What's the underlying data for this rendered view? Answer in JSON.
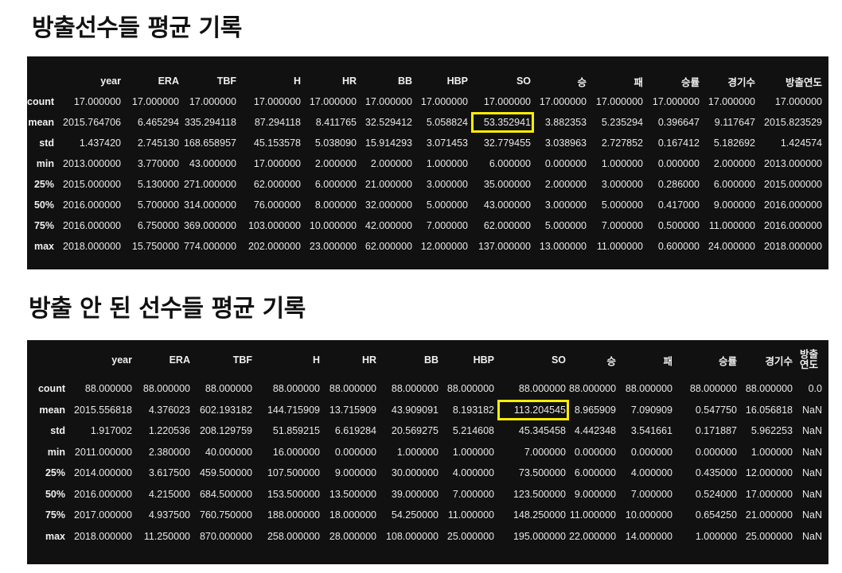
{
  "section1": {
    "title": "방출선수들 평균 기록",
    "columns": [
      "",
      "year",
      "ERA",
      "TBF",
      "H",
      "HR",
      "BB",
      "HBP",
      "SO",
      "승",
      "패",
      "승률",
      "경기수",
      "방출연도"
    ],
    "rows": [
      {
        "label": "count",
        "values": [
          "17.000000",
          "17.000000",
          "17.000000",
          "17.000000",
          "17.000000",
          "17.000000",
          "17.000000",
          "17.000000",
          "17.000000",
          "17.000000",
          "17.000000",
          "17.000000",
          "17.000000"
        ]
      },
      {
        "label": "mean",
        "values": [
          "2015.764706",
          "6.465294",
          "335.294118",
          "87.294118",
          "8.411765",
          "32.529412",
          "5.058824",
          "53.352941",
          "3.882353",
          "5.235294",
          "0.396647",
          "9.117647",
          "2015.823529"
        ]
      },
      {
        "label": "std",
        "values": [
          "1.437420",
          "2.745130",
          "168.658957",
          "45.153578",
          "5.038090",
          "15.914293",
          "3.071453",
          "32.779455",
          "3.038963",
          "2.727852",
          "0.167412",
          "5.182692",
          "1.424574"
        ]
      },
      {
        "label": "min",
        "values": [
          "2013.000000",
          "3.770000",
          "43.000000",
          "17.000000",
          "2.000000",
          "2.000000",
          "1.000000",
          "6.000000",
          "0.000000",
          "1.000000",
          "0.000000",
          "2.000000",
          "2013.000000"
        ]
      },
      {
        "label": "25%",
        "values": [
          "2015.000000",
          "5.130000",
          "271.000000",
          "62.000000",
          "6.000000",
          "21.000000",
          "3.000000",
          "35.000000",
          "2.000000",
          "3.000000",
          "0.286000",
          "6.000000",
          "2015.000000"
        ]
      },
      {
        "label": "50%",
        "values": [
          "2016.000000",
          "5.700000",
          "314.000000",
          "76.000000",
          "8.000000",
          "32.000000",
          "5.000000",
          "43.000000",
          "3.000000",
          "5.000000",
          "0.417000",
          "9.000000",
          "2016.000000"
        ]
      },
      {
        "label": "75%",
        "values": [
          "2016.000000",
          "6.750000",
          "369.000000",
          "103.000000",
          "10.000000",
          "42.000000",
          "7.000000",
          "62.000000",
          "5.000000",
          "7.000000",
          "0.500000",
          "11.000000",
          "2016.000000"
        ]
      },
      {
        "label": "max",
        "values": [
          "2018.000000",
          "15.750000",
          "774.000000",
          "202.000000",
          "23.000000",
          "62.000000",
          "12.000000",
          "137.000000",
          "13.000000",
          "11.000000",
          "0.600000",
          "24.000000",
          "2018.000000"
        ]
      }
    ],
    "highlight_color": "#ffee00"
  },
  "section2": {
    "title": "방출 안 된 선수들 평균 기록",
    "columns": [
      "",
      "year",
      "ERA",
      "TBF",
      "H",
      "HR",
      "BB",
      "HBP",
      "SO",
      "승",
      "패",
      "승률",
      "경기수",
      "방출연도"
    ],
    "rows": [
      {
        "label": "count",
        "values": [
          "88.000000",
          "88.000000",
          "88.000000",
          "88.000000",
          "88.000000",
          "88.000000",
          "88.000000",
          "88.000000",
          "88.000000",
          "88.000000",
          "88.000000",
          "88.000000",
          "0.0"
        ]
      },
      {
        "label": "mean",
        "values": [
          "2015.556818",
          "4.376023",
          "602.193182",
          "144.715909",
          "13.715909",
          "43.909091",
          "8.193182",
          "113.204545",
          "8.965909",
          "7.090909",
          "0.547750",
          "16.056818",
          "NaN"
        ]
      },
      {
        "label": "std",
        "values": [
          "1.917002",
          "1.220536",
          "208.129759",
          "51.859215",
          "6.619284",
          "20.569275",
          "5.214608",
          "45.345458",
          "4.442348",
          "3.541661",
          "0.171887",
          "5.962253",
          "NaN"
        ]
      },
      {
        "label": "min",
        "values": [
          "2011.000000",
          "2.380000",
          "40.000000",
          "16.000000",
          "0.000000",
          "1.000000",
          "1.000000",
          "7.000000",
          "0.000000",
          "0.000000",
          "0.000000",
          "1.000000",
          "NaN"
        ]
      },
      {
        "label": "25%",
        "values": [
          "2014.000000",
          "3.617500",
          "459.500000",
          "107.500000",
          "9.000000",
          "30.000000",
          "4.000000",
          "73.500000",
          "6.000000",
          "4.000000",
          "0.435000",
          "12.000000",
          "NaN"
        ]
      },
      {
        "label": "50%",
        "values": [
          "2016.000000",
          "4.215000",
          "684.500000",
          "153.500000",
          "13.500000",
          "39.000000",
          "7.000000",
          "123.500000",
          "9.000000",
          "7.000000",
          "0.524000",
          "17.000000",
          "NaN"
        ]
      },
      {
        "label": "75%",
        "values": [
          "2017.000000",
          "4.937500",
          "760.750000",
          "188.000000",
          "18.000000",
          "54.250000",
          "11.000000",
          "148.250000",
          "11.000000",
          "10.000000",
          "0.654250",
          "21.000000",
          "NaN"
        ]
      },
      {
        "label": "max",
        "values": [
          "2018.000000",
          "11.250000",
          "870.000000",
          "258.000000",
          "28.000000",
          "108.000000",
          "25.000000",
          "195.000000",
          "22.000000",
          "14.000000",
          "1.000000",
          "25.000000",
          "NaN"
        ]
      }
    ],
    "highlight_color": "#ffee00"
  }
}
